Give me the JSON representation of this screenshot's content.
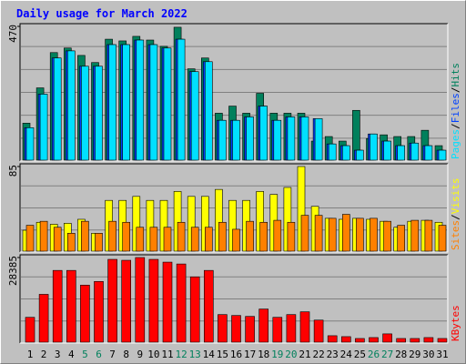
{
  "chart_data": [
    {
      "type": "bar",
      "title": "Daily usage for March 2022",
      "ylim": [
        0,
        470
      ],
      "yticks": [
        470
      ],
      "grid": true,
      "series": [
        {
          "name": "Hits",
          "color": "#00805c",
          "values": [
            130,
            254,
            378,
            394,
            368,
            343,
            425,
            419,
            435,
            422,
            400,
            467,
            321,
            359,
            165,
            190,
            165,
            235,
            165,
            165,
            165,
            67,
            83,
            67,
            175,
            76,
            89,
            83,
            83,
            105,
            51
          ]
        },
        {
          "name": "Files",
          "color": "#0040ff",
          "values": [
            114,
            232,
            359,
            384,
            330,
            330,
            406,
            406,
            422,
            406,
            394,
            425,
            311,
            346,
            140,
            140,
            152,
            190,
            140,
            152,
            152,
            146,
            57,
            51,
            35,
            92,
            67,
            51,
            60,
            51,
            35
          ]
        },
        {
          "name": "Pages",
          "color": "#00e0ff",
          "values": [
            114,
            232,
            359,
            384,
            330,
            330,
            406,
            406,
            422,
            406,
            394,
            425,
            311,
            346,
            140,
            140,
            152,
            190,
            140,
            152,
            152,
            146,
            57,
            51,
            35,
            92,
            67,
            51,
            60,
            51,
            35
          ]
        }
      ]
    },
    {
      "type": "bar",
      "ylim": [
        0,
        85
      ],
      "yticks": [
        85
      ],
      "grid": true,
      "series": [
        {
          "name": "Visits",
          "color": "#ffff00",
          "values": [
            21,
            29,
            27,
            28,
            32,
            18,
            51,
            51,
            55,
            51,
            51,
            60,
            55,
            55,
            62,
            51,
            51,
            60,
            57,
            64,
            85,
            45,
            33,
            32,
            33,
            32,
            30,
            24,
            30,
            31,
            29
          ]
        },
        {
          "name": "Sites",
          "color": "#ff8000",
          "values": [
            26,
            30,
            24,
            18,
            30,
            18,
            30,
            29,
            24,
            24,
            24,
            29,
            24,
            24,
            29,
            22,
            30,
            29,
            31,
            29,
            36,
            36,
            33,
            37,
            33,
            33,
            30,
            26,
            31,
            31,
            26
          ]
        }
      ]
    },
    {
      "type": "bar",
      "ylim": [
        0,
        28385
      ],
      "yticks": [
        28385
      ],
      "grid": true,
      "categories": [
        "1",
        "2",
        "3",
        "4",
        "5",
        "6",
        "7",
        "8",
        "9",
        "10",
        "11",
        "12",
        "13",
        "14",
        "15",
        "16",
        "17",
        "18",
        "19",
        "20",
        "21",
        "22",
        "23",
        "24",
        "25",
        "26",
        "27",
        "28",
        "29",
        "30",
        "31"
      ],
      "weekend_color": "#00805c",
      "weekend_days": [
        5,
        6,
        12,
        13,
        19,
        20,
        26,
        27
      ],
      "series": [
        {
          "name": "KBytes",
          "color": "#ff0000",
          "values": [
            8330,
            16040,
            24060,
            24060,
            19130,
            20360,
            27770,
            27460,
            28385,
            27770,
            26840,
            26220,
            21900,
            24060,
            9250,
            8950,
            8640,
            11110,
            8330,
            9250,
            10180,
            7400,
            2160,
            1850,
            1230,
            1540,
            2780,
            1230,
            1230,
            1540,
            1230
          ]
        }
      ]
    }
  ]
}
